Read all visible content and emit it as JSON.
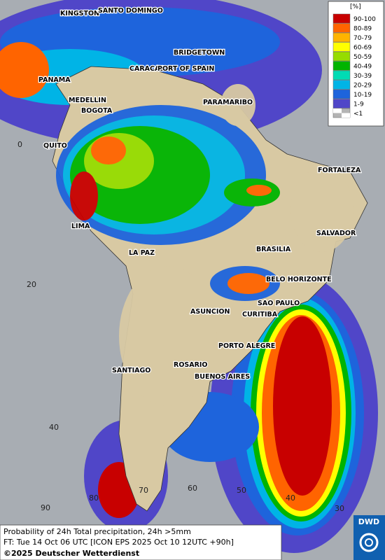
{
  "map": {
    "cities": [
      "KINGSTON",
      "SANTO DOMINGO",
      "BRIDGETOWN",
      "CARACAS",
      "PORT OF SPAIN",
      "PANAMA",
      "MEDELLIN",
      "BOGOTA",
      "PARAMARIBO",
      "QUITO",
      "FORTALEZA",
      "LIMA",
      "SALVADOR",
      "BRASILIA",
      "LA PAZ",
      "BELO HORIZONTE",
      "SAO PAULO",
      "CURITIBA",
      "ASUNCION",
      "PORTO ALEGRE",
      "ROSARIO",
      "BUENOS AIRES",
      "SANTIAGO"
    ],
    "grid_labels": [
      "0",
      "20",
      "40",
      "70",
      "60",
      "50",
      "40",
      "30",
      "80",
      "90"
    ]
  },
  "legend": {
    "unit": "[%]",
    "items": [
      {
        "label": "90-100",
        "color": "#c80000"
      },
      {
        "label": "80-89",
        "color": "#ff6400"
      },
      {
        "label": "70-79",
        "color": "#ffb400"
      },
      {
        "label": "60-69",
        "color": "#ffff00"
      },
      {
        "label": "50-59",
        "color": "#96dc00"
      },
      {
        "label": "40-49",
        "color": "#00b400"
      },
      {
        "label": "30-39",
        "color": "#00dcb4"
      },
      {
        "label": "20-29",
        "color": "#00b4e6"
      },
      {
        "label": "10-19",
        "color": "#1e64dc"
      },
      {
        "label": "1-9",
        "color": "#5046c8"
      },
      {
        "label": "<1",
        "color": "#b4b4b4"
      }
    ]
  },
  "footer": {
    "line1": "Probability of 24h Total precipitation, 24h >5mm",
    "line2": "FT: Tue 14 Oct 06 UTC [ICON EPS 2025 Oct 10 12UTC +90h]",
    "copyright": "©2025 Deutscher Wetterdienst"
  },
  "logo": "DWD"
}
